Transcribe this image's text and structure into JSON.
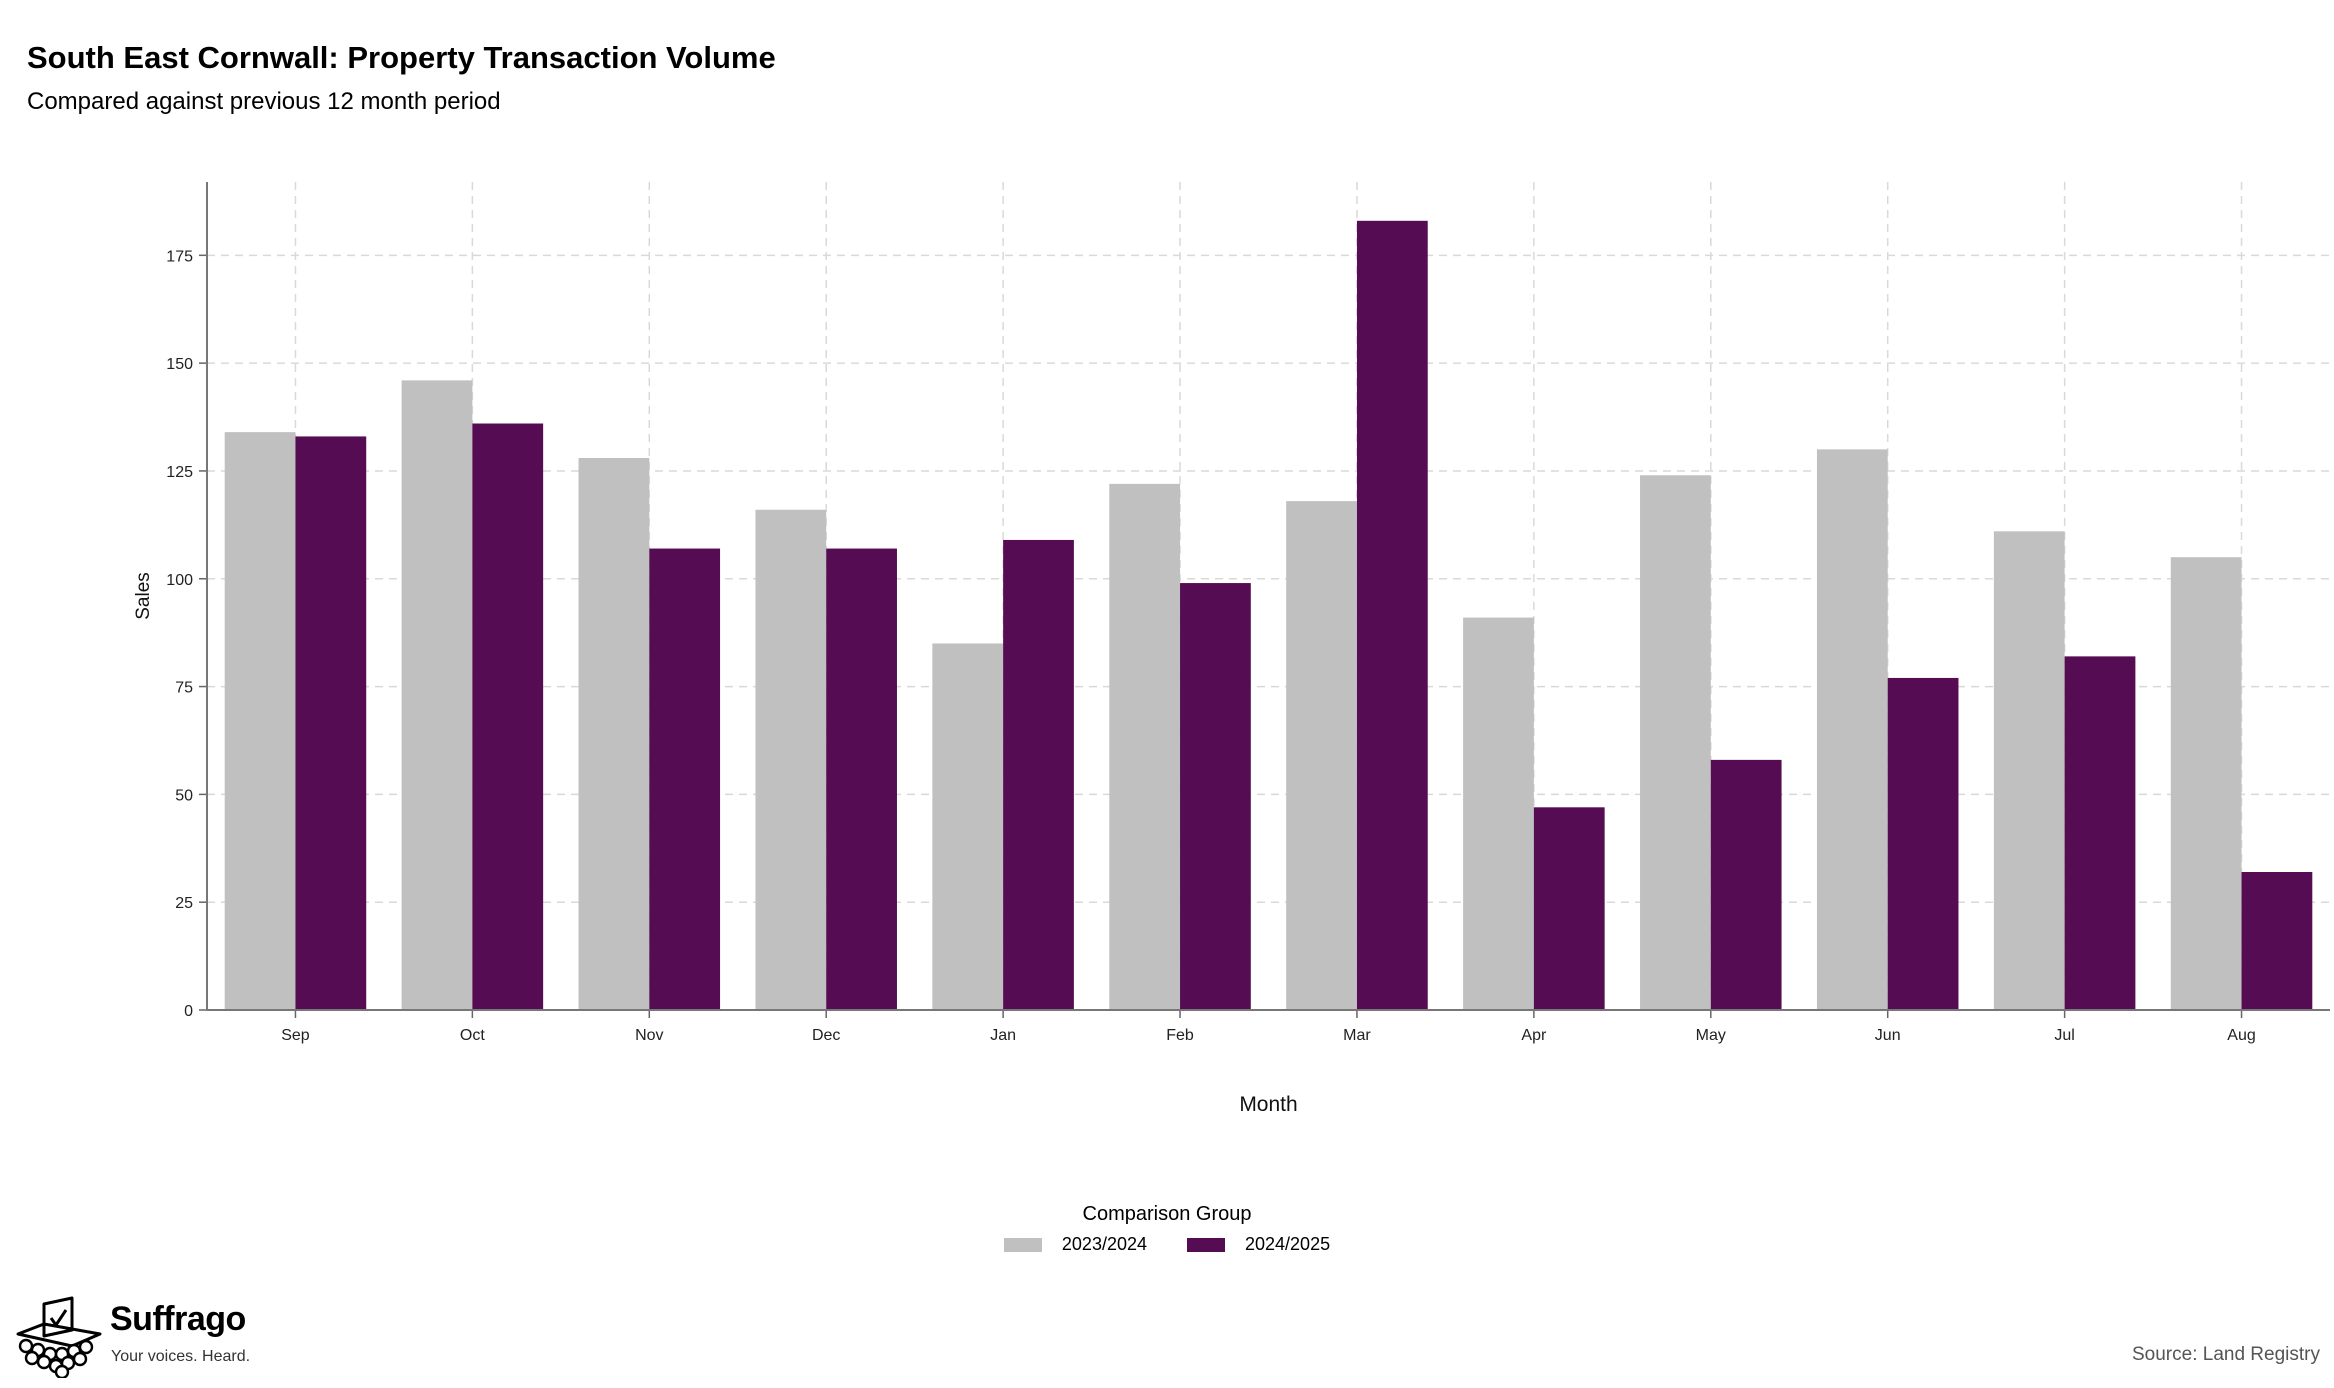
{
  "header": {
    "title": "South East Cornwall: Property Transaction Volume",
    "subtitle": "Compared against previous 12 month period"
  },
  "legend": {
    "title": "Comparison Group",
    "items": [
      {
        "label": "2023/2024",
        "color": "#c0c0c0"
      },
      {
        "label": "2024/2025",
        "color": "#560c52"
      }
    ]
  },
  "footer": {
    "brand": "Suffrago",
    "tagline": "Your voices. Heard.",
    "source": "Source: Land Registry"
  },
  "chart_data": {
    "type": "bar",
    "xlabel": "Month",
    "ylabel": "Sales",
    "ylim": [
      0,
      192
    ],
    "yticks": [
      0,
      25,
      50,
      75,
      100,
      125,
      150,
      175
    ],
    "grid": true,
    "legend_position": "bottom",
    "categories": [
      "Sep",
      "Oct",
      "Nov",
      "Dec",
      "Jan",
      "Feb",
      "Mar",
      "Apr",
      "May",
      "Jun",
      "Jul",
      "Aug"
    ],
    "series": [
      {
        "name": "2023/2024",
        "color": "#c0c0c0",
        "values": [
          134,
          146,
          128,
          116,
          85,
          122,
          118,
          91,
          124,
          130,
          111,
          105
        ]
      },
      {
        "name": "2024/2025",
        "color": "#560c52",
        "values": [
          133,
          136,
          107,
          107,
          109,
          99,
          183,
          47,
          58,
          77,
          82,
          32
        ]
      }
    ]
  }
}
